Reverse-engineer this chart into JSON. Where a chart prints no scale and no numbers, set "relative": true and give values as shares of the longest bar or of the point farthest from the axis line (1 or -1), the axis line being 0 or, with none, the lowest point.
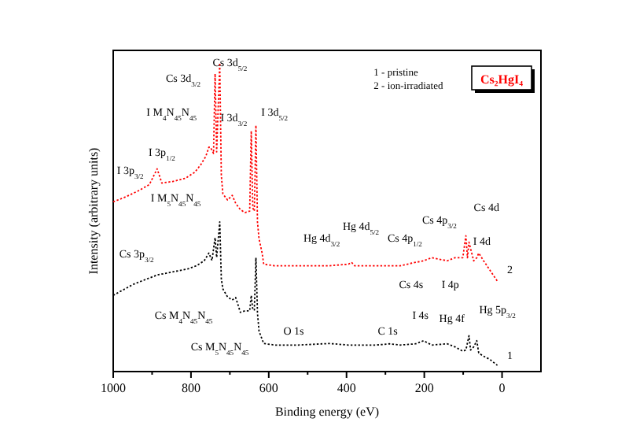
{
  "chart_data": {
    "type": "line",
    "title": "Cs₂HgI₄",
    "xlabel": "Binding energy (eV)",
    "ylabel": "Intensity (arbitrary units)",
    "relative": true,
    "xlim": [
      1000,
      -100
    ],
    "xticks": [
      1000,
      800,
      600,
      400,
      200,
      0
    ],
    "grid": false,
    "line_style": "dotted",
    "series": [
      {
        "color": "#000000",
        "x": [
          1000,
          948,
          887,
          847,
          807,
          786,
          766,
          754,
          746,
          738,
          734,
          726,
          722,
          718,
          706,
          694,
          685,
          673,
          661,
          649,
          645,
          641,
          637,
          633,
          629,
          625,
          613,
          585,
          524,
          444,
          395,
          323,
          290,
          262,
          222,
          202,
          181,
          141,
          121,
          101,
          93,
          85,
          81,
          73,
          65,
          60,
          48,
          32,
          12
        ],
        "values": [
          0.247,
          0.283,
          0.313,
          0.323,
          0.333,
          0.343,
          0.359,
          0.384,
          0.36,
          0.434,
          0.37,
          0.485,
          0.3,
          0.268,
          0.242,
          0.232,
          0.24,
          0.192,
          0.197,
          0.197,
          0.247,
          0.2,
          0.2,
          0.369,
          0.19,
          0.131,
          0.091,
          0.086,
          0.086,
          0.091,
          0.086,
          0.086,
          0.09,
          0.086,
          0.09,
          0.1,
          0.086,
          0.09,
          0.08,
          0.066,
          0.07,
          0.116,
          0.07,
          0.08,
          0.1,
          0.06,
          0.05,
          0.04,
          0.02
        ]
      },
      {
        "color": "#ff0000",
        "x": [
          1000,
          968,
          935,
          907,
          887,
          875,
          847,
          815,
          790,
          774,
          762,
          754,
          750,
          742,
          738,
          734,
          726,
          722,
          718,
          706,
          694,
          685,
          673,
          661,
          649,
          645,
          641,
          637,
          633,
          629,
          625,
          617,
          613,
          585,
          524,
          444,
          395,
          387,
          379,
          323,
          262,
          222,
          202,
          181,
          161,
          141,
          121,
          101,
          93,
          89,
          85,
          73,
          65,
          60,
          48,
          32,
          12
        ],
        "values": [
          0.55,
          0.566,
          0.586,
          0.606,
          0.657,
          0.611,
          0.616,
          0.626,
          0.646,
          0.672,
          0.697,
          0.727,
          0.727,
          0.707,
          0.965,
          0.712,
          1,
          0.636,
          0.576,
          0.556,
          0.571,
          0.545,
          0.525,
          0.515,
          0.52,
          0.78,
          0.53,
          0.52,
          0.798,
          0.485,
          0.43,
          0.384,
          0.348,
          0.343,
          0.343,
          0.343,
          0.348,
          0.354,
          0.343,
          0.343,
          0.343,
          0.354,
          0.359,
          0.369,
          0.364,
          0.359,
          0.369,
          0.369,
          0.44,
          0.369,
          0.419,
          0.359,
          0.369,
          0.384,
          0.36,
          0.33,
          0.293
        ]
      }
    ],
    "annotations": [
      "1 - pristine",
      "2 - ion-irradiated",
      "Cs 3d$_{5/2}$",
      "Cs 3d$_{3/2}$",
      "I M$_{4}$N$_{45}$N$_{45}$",
      "I 3d$_{3/2}$",
      "I 3d$_{5/2}$",
      "I 3p$_{1/2}$",
      "I 3p$_{3/2}$",
      "I M$_{5}$N$_{45}$N$_{45}$",
      "Cs 3p$_{3/2}$",
      "Cs M$_{4}$N$_{45}$N$_{45}$",
      "Cs M$_{5}$N$_{45}$N$_{45}$",
      "O 1s",
      "Hg 4d$_{3/2}$",
      "Hg 4d$_{5/2}$",
      "Cs 4p$_{1/2}$",
      "Cs 4p$_{3/2}$",
      "Cs 4d",
      "I 4d",
      "Cs 4s",
      "I 4p",
      "2",
      "C 1s",
      "I 4s",
      "Hg 4f",
      "Hg 5p$_{3/2}$",
      "1"
    ]
  }
}
